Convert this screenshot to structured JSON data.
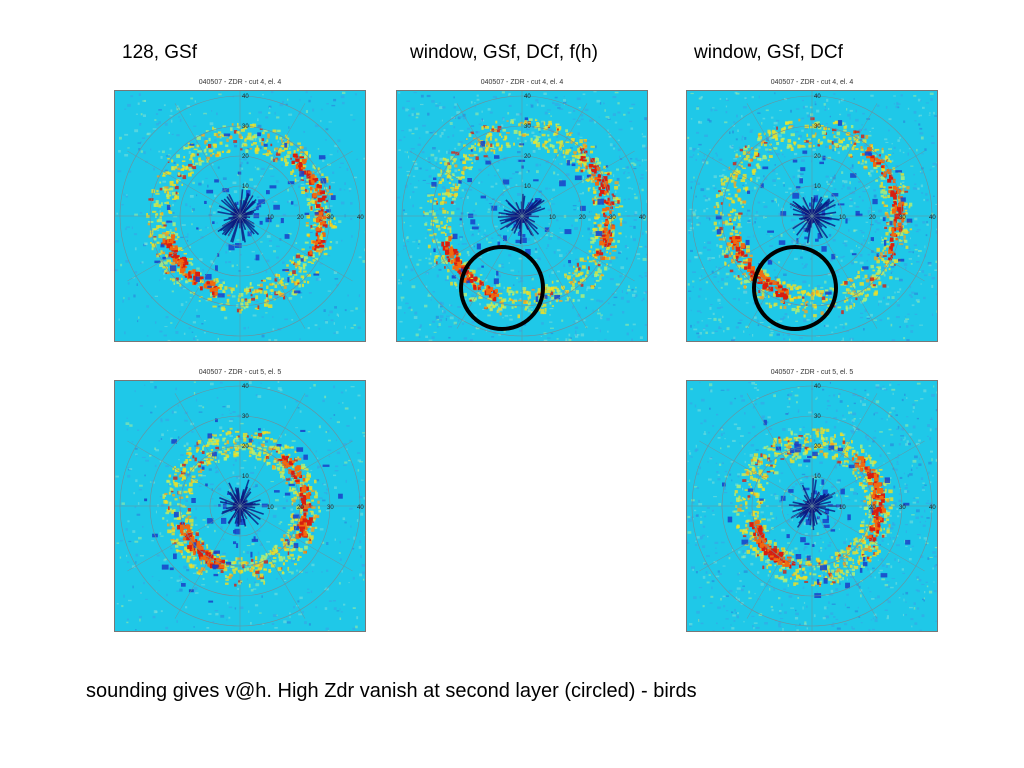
{
  "columns": [
    {
      "label": "128, GSf"
    },
    {
      "label": "window, GSf, DCf, f(h)"
    },
    {
      "label": "window, GSf, DCf"
    }
  ],
  "panels": [
    {
      "title": "040507 - ZDR - cut 4, el. 4",
      "row": 1,
      "column": 1,
      "ring_labels": [
        "10",
        "20",
        "30",
        "40"
      ],
      "north_labels": [
        "10",
        "20",
        "30",
        "40"
      ]
    },
    {
      "title": "040507 - ZDR - cut 4, el. 4",
      "row": 1,
      "column": 2,
      "ring_labels": [
        "10",
        "20",
        "30",
        "40"
      ],
      "north_labels": [
        "10",
        "20",
        "30",
        "40"
      ]
    },
    {
      "title": "040507 - ZDR - cut 4, el. 4",
      "row": 1,
      "column": 3,
      "ring_labels": [
        "10",
        "20",
        "30",
        "40"
      ],
      "north_labels": [
        "10",
        "20",
        "30",
        "40"
      ]
    },
    {
      "title": "040507 - ZDR - cut 5, el. 5",
      "row": 2,
      "column": 1,
      "ring_labels": [
        "10",
        "20",
        "30",
        "40"
      ],
      "north_labels": [
        "10",
        "20",
        "30",
        "40"
      ]
    },
    {
      "title": "040507 - ZDR - cut 5, el. 5",
      "row": 2,
      "column": 3,
      "ring_labels": [
        "10",
        "20",
        "30",
        "40"
      ],
      "north_labels": [
        "10",
        "20",
        "30",
        "40"
      ]
    }
  ],
  "caption": "sounding gives v@h. High Zdr vanish at second layer (circled) - birds",
  "colors": {
    "background_field": "#1fc8e8",
    "low": "#1a3fc8",
    "high": "#d81e10",
    "mid": "#f2e020",
    "grid": "#6f8f9a",
    "marker": "#000000"
  }
}
